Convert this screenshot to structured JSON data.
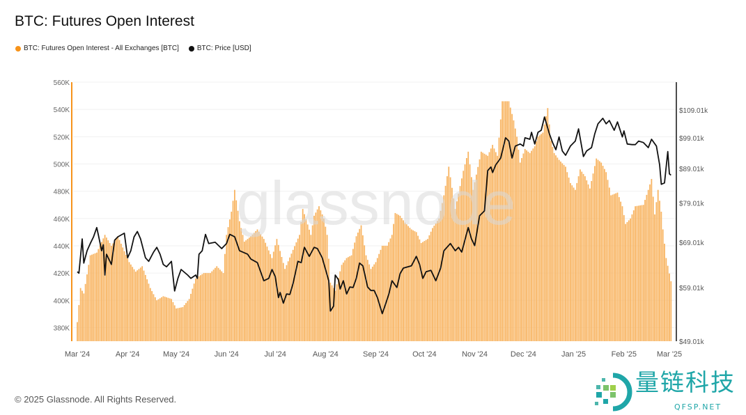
{
  "colors": {
    "oi": "#f7931a",
    "oi_bar": "#f8b461",
    "price": "#111111",
    "grid": "#f1f1f1",
    "watermark": "#d9d9d9"
  },
  "watermark": "glassnode",
  "footer": "© 2025 Glassnode. All Rights Reserved.",
  "logo": {
    "name": "量链科技",
    "url_text": "QFSP.NET"
  },
  "chart_data": {
    "type": "bar+line",
    "title": "BTC: Futures Open Interest",
    "start_date": "2024-03-01",
    "x_unit": "days since start_date",
    "legend": [
      {
        "label": "BTC: Futures Open Interest - All Exchanges [BTC]",
        "color": "#f7931a"
      },
      {
        "label": "BTC: Price [USD]",
        "color": "#111111"
      }
    ],
    "legend_placement": "top-left",
    "x_ticks": [
      {
        "day": 0,
        "label": "Mar '24"
      },
      {
        "day": 31,
        "label": "Apr '24"
      },
      {
        "day": 61,
        "label": "May '24"
      },
      {
        "day": 92,
        "label": "Jun '24"
      },
      {
        "day": 122,
        "label": "Jul '24"
      },
      {
        "day": 153,
        "label": "Aug '24"
      },
      {
        "day": 184,
        "label": "Sep '24"
      },
      {
        "day": 214,
        "label": "Oct '24"
      },
      {
        "day": 245,
        "label": "Nov '24"
      },
      {
        "day": 275,
        "label": "Dec '24"
      },
      {
        "day": 306,
        "label": "Jan '25"
      },
      {
        "day": 337,
        "label": "Feb '25"
      },
      {
        "day": 365,
        "label": "Mar '25"
      }
    ],
    "x_range": [
      0,
      366
    ],
    "left_axis": {
      "scale": "linear",
      "ylim": [
        370,
        560
      ],
      "unit": "K BTC",
      "ticks": [
        {
          "v": 380,
          "label": "380K"
        },
        {
          "v": 400,
          "label": "400K"
        },
        {
          "v": 420,
          "label": "420K"
        },
        {
          "v": 440,
          "label": "440K"
        },
        {
          "v": 460,
          "label": "460K"
        },
        {
          "v": 480,
          "label": "480K"
        },
        {
          "v": 500,
          "label": "500K"
        },
        {
          "v": 520,
          "label": "520K"
        },
        {
          "v": 540,
          "label": "540K"
        },
        {
          "v": 560,
          "label": "560K"
        }
      ]
    },
    "right_axis": {
      "scale": "log",
      "ylim": [
        49.01,
        120
      ],
      "unit": "k USD",
      "ticks": [
        {
          "v": 49.01,
          "label": "$49.01k"
        },
        {
          "v": 59.01,
          "label": "$59.01k"
        },
        {
          "v": 69.01,
          "label": "$69.01k"
        },
        {
          "v": 79.01,
          "label": "$79.01k"
        },
        {
          "v": 89.01,
          "label": "$89.01k"
        },
        {
          "v": 99.01,
          "label": "$99.01k"
        },
        {
          "v": 109.01,
          "label": "$109.01k"
        }
      ]
    },
    "grid": true,
    "series": [
      {
        "name": "BTC: Futures Open Interest - All Exchanges [BTC]",
        "kind": "bar",
        "axis": "left",
        "points": [
          [
            0,
            384
          ],
          [
            2,
            409
          ],
          [
            4,
            405
          ],
          [
            8,
            433
          ],
          [
            12,
            435
          ],
          [
            17,
            448
          ],
          [
            21,
            440
          ],
          [
            25,
            447
          ],
          [
            29,
            436
          ],
          [
            32,
            428
          ],
          [
            36,
            421
          ],
          [
            40,
            425
          ],
          [
            45,
            409
          ],
          [
            49,
            400
          ],
          [
            53,
            403
          ],
          [
            58,
            401
          ],
          [
            61,
            394
          ],
          [
            65,
            395
          ],
          [
            69,
            401
          ],
          [
            73,
            416
          ],
          [
            78,
            420
          ],
          [
            82,
            420
          ],
          [
            86,
            425
          ],
          [
            90,
            420
          ],
          [
            92,
            448
          ],
          [
            95,
            465
          ],
          [
            97,
            481
          ],
          [
            100,
            458
          ],
          [
            103,
            443
          ],
          [
            107,
            447
          ],
          [
            111,
            452
          ],
          [
            115,
            445
          ],
          [
            120,
            431
          ],
          [
            123,
            445
          ],
          [
            128,
            423
          ],
          [
            133,
            437
          ],
          [
            137,
            448
          ],
          [
            139,
            467
          ],
          [
            144,
            448
          ],
          [
            146,
            462
          ],
          [
            149,
            469
          ],
          [
            152,
            460
          ],
          [
            154,
            448
          ],
          [
            156,
            413
          ],
          [
            159,
            407
          ],
          [
            163,
            426
          ],
          [
            166,
            431
          ],
          [
            169,
            433
          ],
          [
            172,
            447
          ],
          [
            175,
            455
          ],
          [
            178,
            433
          ],
          [
            181,
            423
          ],
          [
            184,
            428
          ],
          [
            188,
            440
          ],
          [
            191,
            440
          ],
          [
            194,
            448
          ],
          [
            196,
            464
          ],
          [
            199,
            462
          ],
          [
            202,
            457
          ],
          [
            206,
            452
          ],
          [
            209,
            450
          ],
          [
            212,
            442
          ],
          [
            216,
            445
          ],
          [
            219,
            453
          ],
          [
            223,
            460
          ],
          [
            226,
            477
          ],
          [
            229,
            498
          ],
          [
            233,
            467
          ],
          [
            238,
            495
          ],
          [
            241,
            509
          ],
          [
            244,
            481
          ],
          [
            249,
            509
          ],
          [
            253,
            506
          ],
          [
            256,
            514
          ],
          [
            259,
            506
          ],
          [
            262,
            546
          ],
          [
            266,
            546
          ],
          [
            269,
            532
          ],
          [
            271,
            520
          ],
          [
            273,
            501
          ],
          [
            276,
            511
          ],
          [
            279,
            508
          ],
          [
            282,
            513
          ],
          [
            284,
            520
          ],
          [
            287,
            523
          ],
          [
            290,
            541
          ],
          [
            292,
            517
          ],
          [
            294,
            508
          ],
          [
            297,
            503
          ],
          [
            301,
            498
          ],
          [
            304,
            486
          ],
          [
            307,
            481
          ],
          [
            310,
            496
          ],
          [
            313,
            491
          ],
          [
            316,
            482
          ],
          [
            320,
            504
          ],
          [
            323,
            501
          ],
          [
            326,
            494
          ],
          [
            329,
            477
          ],
          [
            333,
            479
          ],
          [
            336,
            469
          ],
          [
            338,
            456
          ],
          [
            341,
            460
          ],
          [
            344,
            469
          ],
          [
            349,
            470
          ],
          [
            352,
            481
          ],
          [
            354,
            489
          ],
          [
            356,
            463
          ],
          [
            358,
            481
          ],
          [
            360,
            465
          ],
          [
            361,
            452
          ],
          [
            363,
            431
          ],
          [
            366,
            414
          ]
        ]
      },
      {
        "name": "BTC: Price [USD]",
        "kind": "line",
        "axis": "right",
        "points": [
          [
            0,
            62.3
          ],
          [
            1,
            62.0
          ],
          [
            3,
            69.8
          ],
          [
            4,
            64.2
          ],
          [
            6,
            67.0
          ],
          [
            8,
            68.7
          ],
          [
            10,
            70.3
          ],
          [
            12,
            72.6
          ],
          [
            13,
            70.7
          ],
          [
            15,
            67.0
          ],
          [
            16,
            68.4
          ],
          [
            17,
            61.6
          ],
          [
            18,
            66.2
          ],
          [
            21,
            63.9
          ],
          [
            23,
            69.5
          ],
          [
            25,
            70.3
          ],
          [
            29,
            71.2
          ],
          [
            31,
            65.4
          ],
          [
            33,
            67.0
          ],
          [
            35,
            70.3
          ],
          [
            37,
            71.6
          ],
          [
            39,
            69.8
          ],
          [
            42,
            65.4
          ],
          [
            44,
            64.6
          ],
          [
            47,
            66.7
          ],
          [
            49,
            67.8
          ],
          [
            51,
            66.2
          ],
          [
            53,
            63.9
          ],
          [
            55,
            63.4
          ],
          [
            58,
            64.6
          ],
          [
            60,
            58.3
          ],
          [
            62,
            60.9
          ],
          [
            64,
            62.8
          ],
          [
            68,
            61.6
          ],
          [
            70,
            60.9
          ],
          [
            73,
            61.6
          ],
          [
            74,
            60.9
          ],
          [
            75,
            66.2
          ],
          [
            77,
            67.0
          ],
          [
            79,
            70.9
          ],
          [
            81,
            68.7
          ],
          [
            85,
            69.0
          ],
          [
            89,
            67.5
          ],
          [
            92,
            68.7
          ],
          [
            94,
            70.9
          ],
          [
            97,
            70.3
          ],
          [
            100,
            67.0
          ],
          [
            105,
            66.2
          ],
          [
            107,
            65.1
          ],
          [
            111,
            64.3
          ],
          [
            113,
            62.3
          ],
          [
            115,
            60.4
          ],
          [
            118,
            60.9
          ],
          [
            120,
            62.8
          ],
          [
            122,
            61.3
          ],
          [
            124,
            57.0
          ],
          [
            125,
            58.0
          ],
          [
            127,
            55.9
          ],
          [
            129,
            57.7
          ],
          [
            131,
            57.6
          ],
          [
            133,
            59.8
          ],
          [
            136,
            64.6
          ],
          [
            138,
            64.3
          ],
          [
            140,
            67.8
          ],
          [
            143,
            65.7
          ],
          [
            146,
            67.8
          ],
          [
            148,
            67.5
          ],
          [
            151,
            65.4
          ],
          [
            155,
            60.4
          ],
          [
            156,
            54.4
          ],
          [
            158,
            55.3
          ],
          [
            159,
            61.6
          ],
          [
            161,
            60.6
          ],
          [
            162,
            58.7
          ],
          [
            164,
            60.4
          ],
          [
            166,
            57.7
          ],
          [
            168,
            59.1
          ],
          [
            170,
            59.0
          ],
          [
            172,
            60.9
          ],
          [
            174,
            64.2
          ],
          [
            176,
            63.6
          ],
          [
            179,
            59.1
          ],
          [
            181,
            58.4
          ],
          [
            183,
            58.4
          ],
          [
            185,
            57.0
          ],
          [
            188,
            53.9
          ],
          [
            190,
            55.7
          ],
          [
            192,
            57.6
          ],
          [
            194,
            60.4
          ],
          [
            197,
            59.0
          ],
          [
            199,
            61.9
          ],
          [
            201,
            63.1
          ],
          [
            206,
            63.6
          ],
          [
            209,
            65.7
          ],
          [
            211,
            63.9
          ],
          [
            213,
            60.9
          ],
          [
            215,
            62.3
          ],
          [
            218,
            62.6
          ],
          [
            221,
            60.4
          ],
          [
            224,
            63.1
          ],
          [
            226,
            67.0
          ],
          [
            230,
            68.7
          ],
          [
            233,
            67.0
          ],
          [
            235,
            67.8
          ],
          [
            237,
            66.7
          ],
          [
            241,
            72.6
          ],
          [
            243,
            69.8
          ],
          [
            245,
            68.2
          ],
          [
            248,
            75.6
          ],
          [
            251,
            76.9
          ],
          [
            253,
            88.4
          ],
          [
            255,
            89.5
          ],
          [
            256,
            87.8
          ],
          [
            258,
            90.2
          ],
          [
            261,
            92.3
          ],
          [
            264,
            99.0
          ],
          [
            266,
            97.9
          ],
          [
            268,
            92.3
          ],
          [
            270,
            96.2
          ],
          [
            273,
            96.9
          ],
          [
            275,
            96.2
          ],
          [
            276,
            99.0
          ],
          [
            279,
            98.5
          ],
          [
            280,
            100.9
          ],
          [
            282,
            96.9
          ],
          [
            284,
            100.9
          ],
          [
            286,
            101.6
          ],
          [
            288,
            106.4
          ],
          [
            291,
            100.4
          ],
          [
            293,
            97.4
          ],
          [
            295,
            95.0
          ],
          [
            297,
            99.3
          ],
          [
            299,
            94.6
          ],
          [
            301,
            93.2
          ],
          [
            304,
            96.2
          ],
          [
            307,
            97.9
          ],
          [
            309,
            102.1
          ],
          [
            312,
            92.8
          ],
          [
            314,
            94.6
          ],
          [
            317,
            95.7
          ],
          [
            319,
            100.4
          ],
          [
            321,
            103.9
          ],
          [
            324,
            105.9
          ],
          [
            326,
            103.9
          ],
          [
            328,
            105.1
          ],
          [
            331,
            101.6
          ],
          [
            333,
            104.6
          ],
          [
            336,
            99.3
          ],
          [
            337,
            101.4
          ],
          [
            339,
            96.9
          ],
          [
            342,
            96.7
          ],
          [
            344,
            96.7
          ],
          [
            346,
            97.9
          ],
          [
            349,
            97.4
          ],
          [
            352,
            95.7
          ],
          [
            354,
            98.5
          ],
          [
            357,
            96.2
          ],
          [
            359,
            90.2
          ],
          [
            360,
            84.3
          ],
          [
            362,
            84.7
          ],
          [
            364,
            94.4
          ],
          [
            365,
            87.4
          ],
          [
            366,
            87.0
          ]
        ]
      }
    ]
  }
}
